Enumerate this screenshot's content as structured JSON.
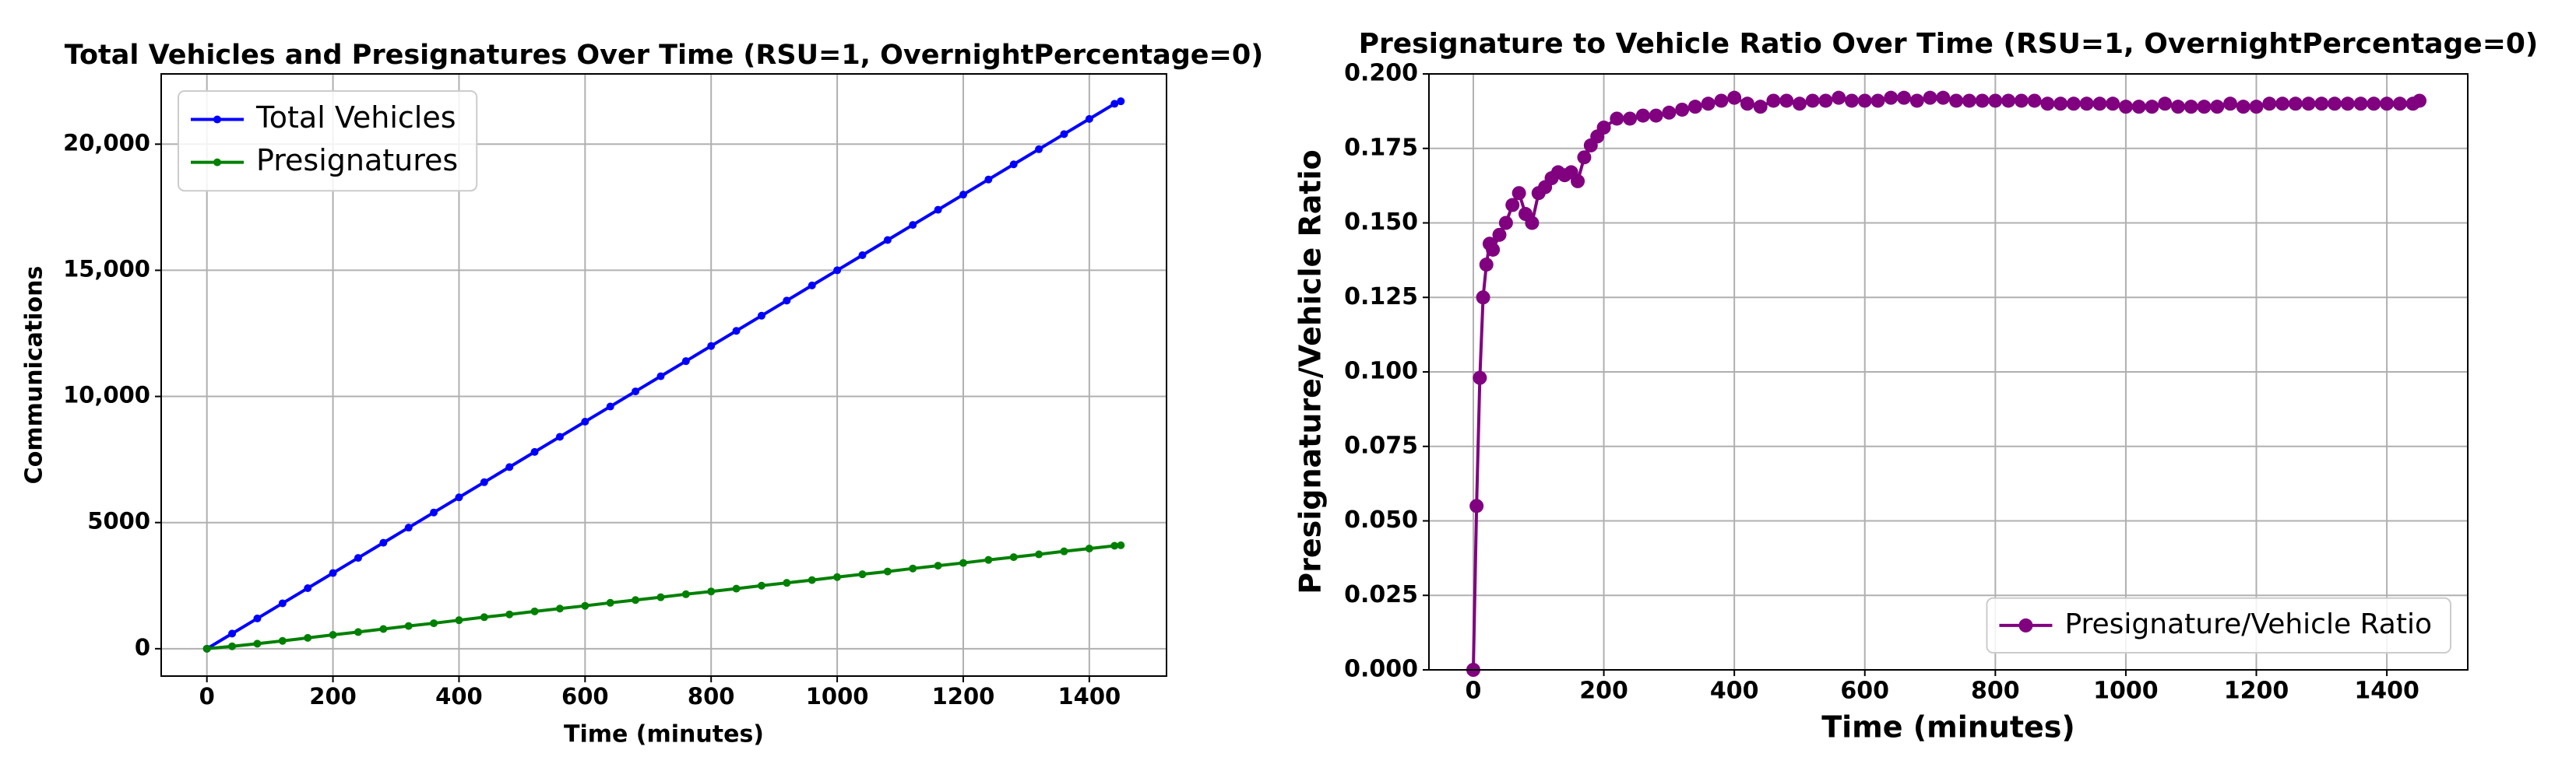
{
  "chart_data": [
    {
      "type": "line",
      "title": "Total Vehicles and Presignatures Over Time (RSU=1, OvernightPercentage=0)",
      "xlabel": "Time (minutes)",
      "ylabel": "Communications",
      "x": [
        0,
        40,
        80,
        120,
        160,
        200,
        240,
        280,
        320,
        360,
        400,
        440,
        480,
        520,
        560,
        600,
        640,
        680,
        720,
        760,
        800,
        840,
        880,
        920,
        960,
        1000,
        1040,
        1080,
        1120,
        1160,
        1200,
        1240,
        1280,
        1320,
        1360,
        1400,
        1440,
        1450
      ],
      "series": [
        {
          "name": "Total Vehicles",
          "color": "#0000ff",
          "values": [
            0,
            600,
            1200,
            1800,
            2400,
            3000,
            3600,
            4200,
            4800,
            5400,
            6000,
            6600,
            7200,
            7800,
            8400,
            9000,
            9600,
            10200,
            10800,
            11400,
            12000,
            12600,
            13200,
            13800,
            14400,
            15000,
            15600,
            16200,
            16800,
            17400,
            18000,
            18600,
            19200,
            19800,
            20400,
            21000,
            21600,
            21700
          ]
        },
        {
          "name": "Presignatures",
          "color": "#008000",
          "values": [
            0,
            95,
            200,
            310,
            430,
            550,
            660,
            780,
            900,
            1010,
            1130,
            1250,
            1360,
            1480,
            1590,
            1700,
            1820,
            1930,
            2040,
            2160,
            2270,
            2380,
            2500,
            2610,
            2720,
            2840,
            2950,
            3060,
            3180,
            3290,
            3400,
            3520,
            3630,
            3740,
            3860,
            3970,
            4080,
            4100
          ]
        }
      ],
      "xlim": [
        -72.5,
        1522.5
      ],
      "xticks": [
        0,
        200,
        400,
        600,
        800,
        1000,
        1200,
        1400
      ],
      "ylim": [
        -1085,
        22785
      ],
      "yticks": [
        0,
        5000,
        {
          "value": 10000,
          "label": "10,000"
        },
        {
          "value": 15000,
          "label": "15,000"
        },
        {
          "value": 20000,
          "label": "20,000"
        }
      ],
      "grid": true,
      "legend": "upper left"
    },
    {
      "type": "line",
      "title": "Presignature to Vehicle Ratio Over Time (RSU=1, OvernightPercentage=0)",
      "xlabel": "Time (minutes)",
      "ylabel": "Presignature/Vehicle Ratio",
      "x": [
        0,
        5,
        10,
        15,
        20,
        25,
        30,
        40,
        50,
        60,
        70,
        80,
        90,
        100,
        110,
        120,
        130,
        140,
        150,
        160,
        170,
        180,
        190,
        200,
        220,
        240,
        260,
        280,
        300,
        320,
        340,
        360,
        380,
        400,
        420,
        440,
        460,
        480,
        500,
        520,
        540,
        560,
        580,
        600,
        620,
        640,
        660,
        680,
        700,
        720,
        740,
        760,
        780,
        800,
        820,
        840,
        860,
        880,
        900,
        920,
        940,
        960,
        980,
        1000,
        1020,
        1040,
        1060,
        1080,
        1100,
        1120,
        1140,
        1160,
        1180,
        1200,
        1220,
        1240,
        1260,
        1280,
        1300,
        1320,
        1340,
        1360,
        1380,
        1400,
        1420,
        1440,
        1450
      ],
      "series": [
        {
          "name": "Presignature/Vehicle Ratio",
          "color": "#800080",
          "values": [
            0,
            0.055,
            0.098,
            0.125,
            0.136,
            0.143,
            0.141,
            0.146,
            0.15,
            0.156,
            0.16,
            0.153,
            0.15,
            0.16,
            0.162,
            0.165,
            0.167,
            0.166,
            0.167,
            0.164,
            0.172,
            0.176,
            0.179,
            0.182,
            0.185,
            0.185,
            0.186,
            0.186,
            0.187,
            0.188,
            0.189,
            0.19,
            0.191,
            0.192,
            0.19,
            0.189,
            0.191,
            0.191,
            0.19,
            0.191,
            0.191,
            0.192,
            0.191,
            0.191,
            0.191,
            0.192,
            0.192,
            0.191,
            0.192,
            0.192,
            0.191,
            0.191,
            0.191,
            0.191,
            0.191,
            0.191,
            0.191,
            0.19,
            0.19,
            0.19,
            0.19,
            0.19,
            0.19,
            0.189,
            0.189,
            0.189,
            0.19,
            0.189,
            0.189,
            0.189,
            0.189,
            0.19,
            0.189,
            0.189,
            0.19,
            0.19,
            0.19,
            0.19,
            0.19,
            0.19,
            0.19,
            0.19,
            0.19,
            0.19,
            0.19,
            0.19,
            0.191
          ]
        }
      ],
      "xlim": [
        -68,
        1524
      ],
      "xticks": [
        0,
        200,
        400,
        600,
        800,
        1000,
        1200,
        1400
      ],
      "ylim": [
        0,
        0.2
      ],
      "yticks": [
        {
          "value": 0,
          "label": "0.000"
        },
        {
          "value": 0.025,
          "label": "0.025"
        },
        {
          "value": 0.05,
          "label": "0.050"
        },
        {
          "value": 0.075,
          "label": "0.075"
        },
        {
          "value": 0.1,
          "label": "0.100"
        },
        {
          "value": 0.125,
          "label": "0.125"
        },
        {
          "value": 0.15,
          "label": "0.150"
        },
        {
          "value": 0.175,
          "label": "0.175"
        },
        {
          "value": 0.2,
          "label": "0.200"
        }
      ],
      "grid": true,
      "legend": "lower right"
    }
  ]
}
